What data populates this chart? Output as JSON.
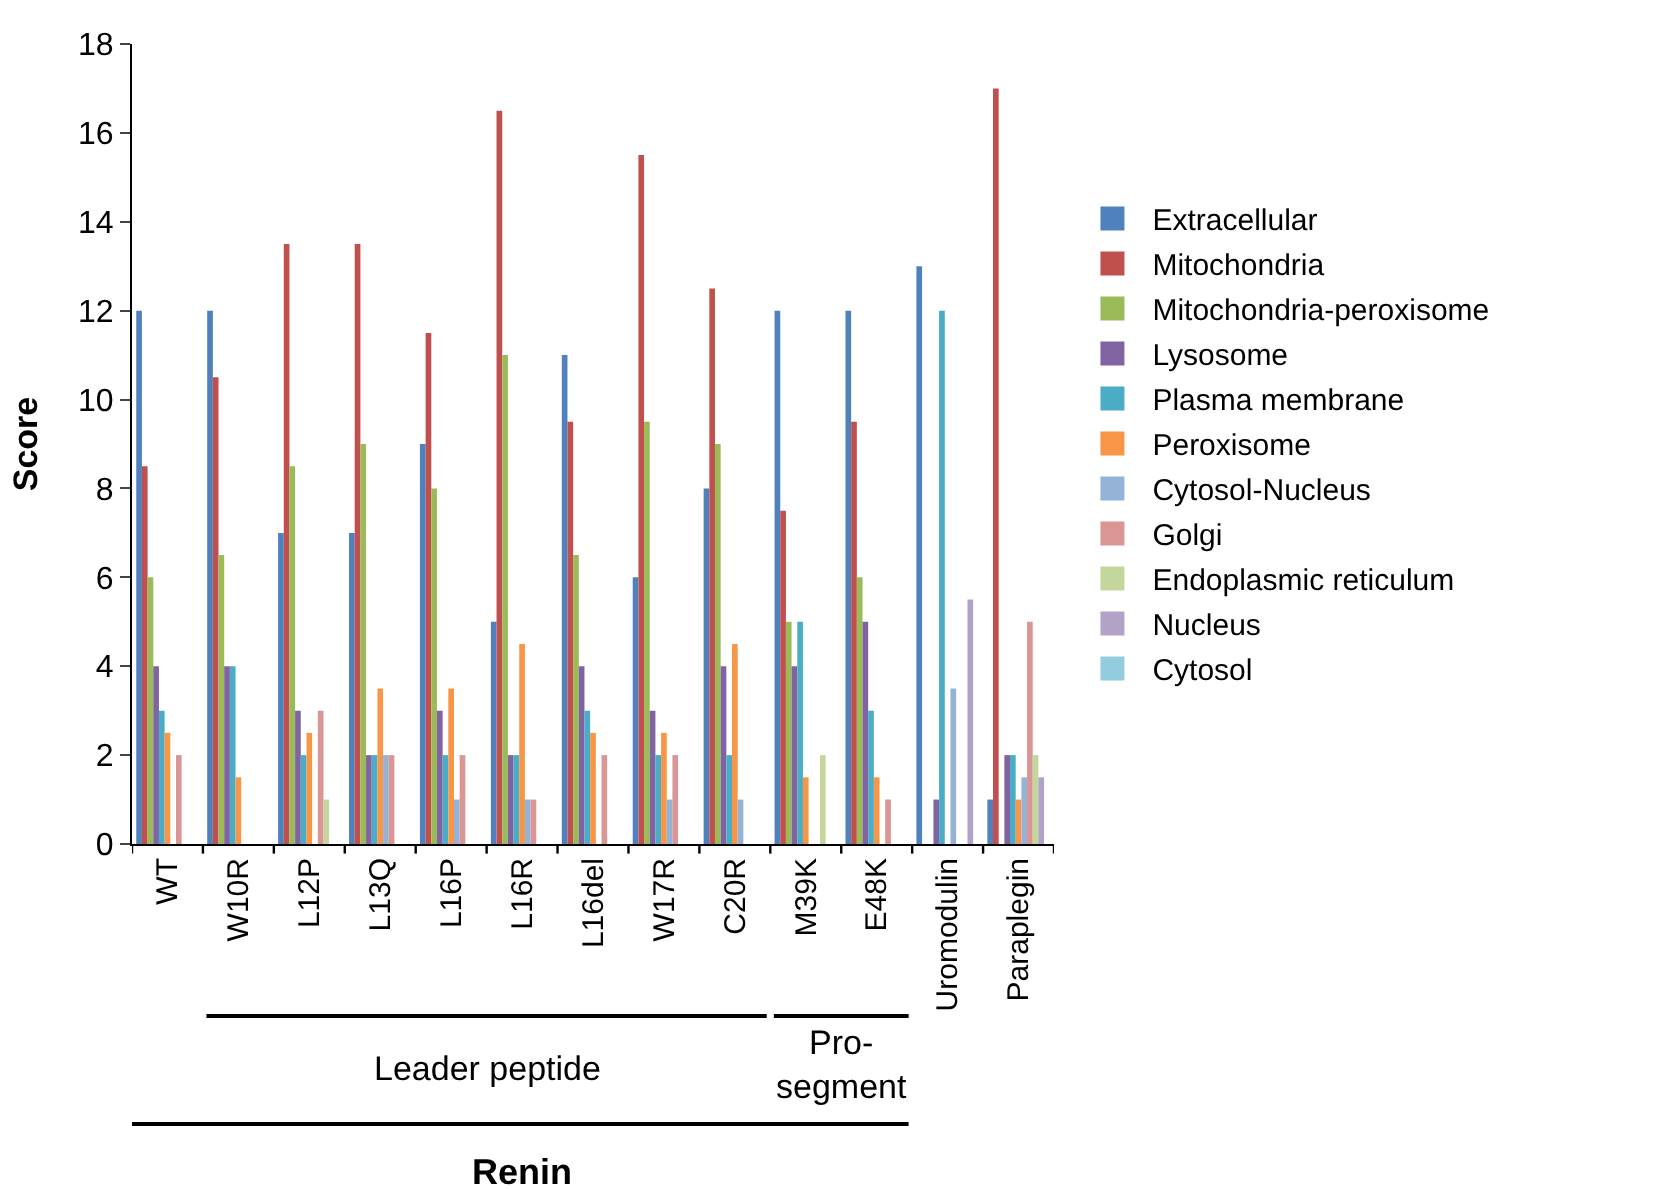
{
  "chart_data": {
    "type": "bar",
    "ylabel": "Score",
    "categories": [
      "WT",
      "W10R",
      "L12P",
      "L13Q",
      "L16P",
      "L16R",
      "L16del",
      "W17R",
      "C20R",
      "M39K",
      "E48K",
      "Uromodulin",
      "Paraplegin"
    ],
    "series": [
      {
        "name": "Extracellular",
        "color": "#4f81bd",
        "values": [
          12,
          12,
          7,
          7,
          9,
          5,
          11,
          6,
          8,
          12,
          12,
          13,
          1
        ]
      },
      {
        "name": "Mitochondria",
        "color": "#c0504d",
        "values": [
          8.5,
          10.5,
          13.5,
          13.5,
          11.5,
          16.5,
          9.5,
          15.5,
          12.5,
          7.5,
          9.5,
          0,
          17
        ]
      },
      {
        "name": "Mitochondria-peroxisome",
        "color": "#9bbb59",
        "values": [
          6,
          6.5,
          8.5,
          9,
          8,
          11,
          6.5,
          9.5,
          9,
          5,
          6,
          0,
          0
        ]
      },
      {
        "name": "Lysosome",
        "color": "#8064a2",
        "values": [
          4,
          4,
          3,
          2,
          3,
          2,
          4,
          3,
          4,
          4,
          5,
          1,
          2
        ]
      },
      {
        "name": "Plasma membrane",
        "color": "#4bacc6",
        "values": [
          3,
          4,
          2,
          2,
          2,
          2,
          3,
          2,
          2,
          5,
          3,
          12,
          2
        ]
      },
      {
        "name": "Peroxisome",
        "color": "#f79646",
        "values": [
          2.5,
          1.5,
          2.5,
          3.5,
          3.5,
          4.5,
          2.5,
          2.5,
          4.5,
          1.5,
          1.5,
          0,
          1
        ]
      },
      {
        "name": "Cytosol-Nucleus",
        "color": "#95b3d7",
        "values": [
          0,
          0,
          0,
          2,
          1,
          1,
          0,
          1,
          1,
          0,
          0,
          3.5,
          1.5
        ]
      },
      {
        "name": "Golgi",
        "color": "#d99694",
        "values": [
          2,
          0,
          3,
          2,
          2,
          1,
          2,
          2,
          0,
          0,
          1,
          0,
          5
        ]
      },
      {
        "name": "Endoplasmic reticulum",
        "color": "#c3d69b",
        "values": [
          0,
          0,
          1,
          0,
          0,
          0,
          0,
          0,
          0,
          2,
          0,
          0,
          2
        ]
      },
      {
        "name": "Nucleus",
        "color": "#b3a2c7",
        "values": [
          0,
          0,
          0,
          0,
          0,
          0,
          0,
          0,
          0,
          0,
          0,
          5.5,
          1.5
        ]
      },
      {
        "name": "Cytosol",
        "color": "#93cddd",
        "values": [
          0,
          0,
          0,
          0,
          0,
          0,
          0,
          0,
          0,
          0,
          0,
          0,
          0
        ]
      }
    ],
    "ylim": [
      0,
      18
    ],
    "yticks": [
      0,
      2,
      4,
      6,
      8,
      10,
      12,
      14,
      16,
      18
    ],
    "legend": "right",
    "annotations": [
      "Leader peptide",
      "Pro-\nsegment",
      "Renin"
    ]
  }
}
